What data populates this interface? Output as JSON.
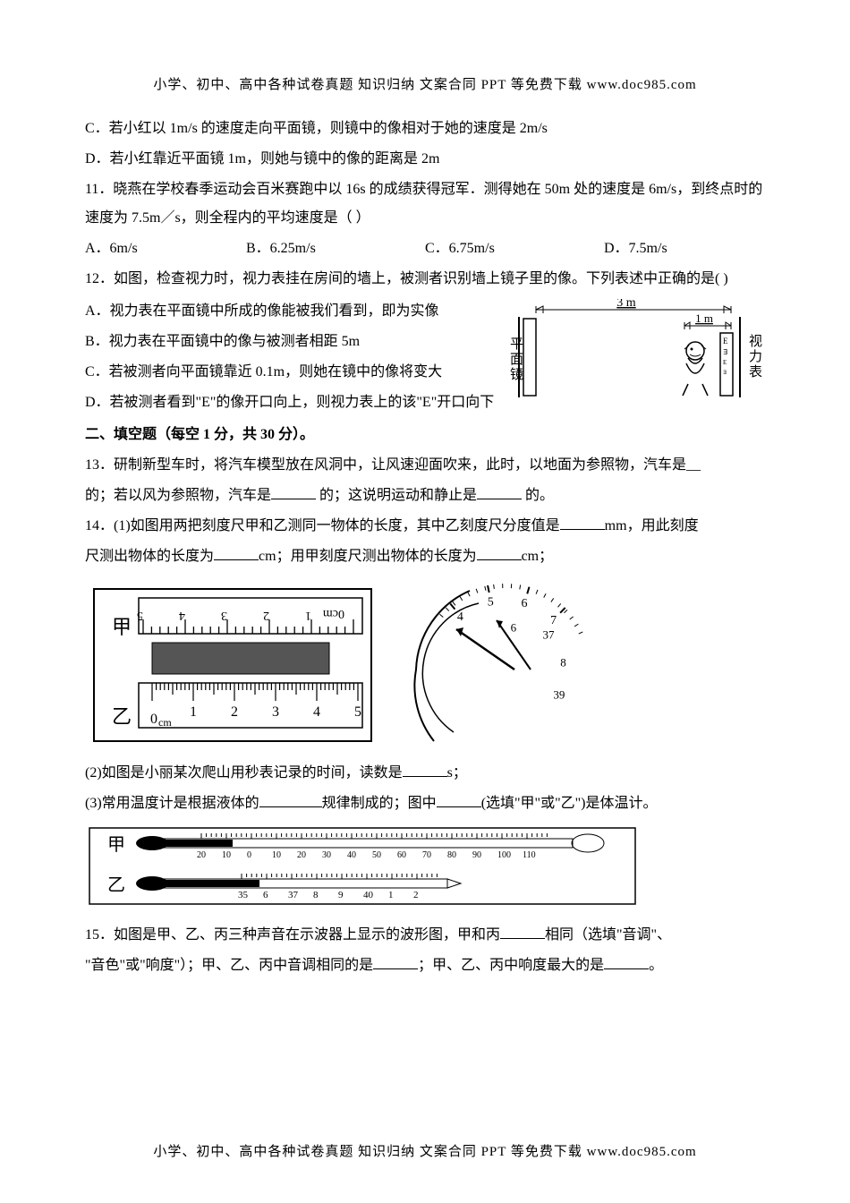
{
  "header": "小学、初中、高中各种试卷真题 知识归纳 文案合同 PPT 等免费下载  www.doc985.com",
  "footer": "小学、初中、高中各种试卷真题 知识归纳 文案合同 PPT 等免费下载  www.doc985.com",
  "q10C": "C．若小红以 1m/s 的速度走向平面镜，则镜中的像相对于她的速度是 2m/s",
  "q10D": "D．若小红靠近平面镜 1m，则她与镜中的像的距离是 2m",
  "q11stem": "11．晓燕在学校春季运动会百米赛跑中以 16s 的成绩获得冠军．测得她在 50m 处的速度是 6m/s，到终点时的速度为 7.5m／s，则全程内的平均速度是（        ）",
  "q11": {
    "A": "A．6m/s",
    "B": "B．6.25m/s",
    "C": "C．6.75m/s",
    "D": "D．7.5m/s"
  },
  "q12stem": "12．如图，检查视力时，视力表挂在房间的墙上，被测者识别墙上镜子里的像。下列表述中正确的是(      )",
  "q12": {
    "A": "A．视力表在平面镜中所成的像能被我们看到，即为实像",
    "B": "B．视力表在平面镜中的像与被测者相距 5m",
    "C": "C．若被测者向平面镜靠近 0.1m，则她在镜中的像将变大",
    "D": "D．若被测者看到\"E\"的像开口向上，则视力表上的该\"E\"开口向下"
  },
  "q12fig": {
    "d3": "3 m",
    "d1": "1 m",
    "mirror": "平面镜",
    "chart": "视力表"
  },
  "section2": "二、填空题（每空 1 分，共 30 分）。",
  "q13a": "13．研制新型车时，将汽车模型放在风洞中，让风速迎面吹来，此时，以地面为参照物，汽车是__",
  "q13b1": "的；若以风为参照物，汽车是",
  "q13b2": "的；这说明运动和静止是",
  "q13b3": "的。",
  "q14_1a": "14．(1)如图用两把刻度尺甲和乙测同一物体的长度，其中乙刻度尺分度值是",
  "q14_1b": "mm，用此刻度",
  "q14_1c": "尺测出物体的长度为",
  "q14_1d": "cm；用甲刻度尺测出物体的长度为",
  "q14_1e": "cm；",
  "ruler": {
    "jia": "甲",
    "yi": "乙",
    "top_label": "0cm",
    "top_ticks": [
      "1",
      "2",
      "3",
      "4",
      "5"
    ],
    "bot_label": "0cm",
    "bot_ticks": [
      "1",
      "2",
      "3",
      "4",
      "5"
    ]
  },
  "stopwatch": {
    "outer": [
      "4",
      "5",
      "6",
      "7"
    ],
    "inner": [
      "6",
      "37",
      "8",
      "39"
    ]
  },
  "q14_2a": "(2)如图是小丽某次爬山用秒表记录的时间，读数是",
  "q14_2b": "s；",
  "q14_3a": "(3)常用温度计是根据液体的",
  "q14_3b": "规律制成的；图中",
  "q14_3c": "(选填\"甲\"或\"乙\")是体温计。",
  "thermo": {
    "jia": "甲",
    "yi": "乙",
    "jia_ticks": [
      "20",
      "10",
      "0",
      "10",
      "20",
      "30",
      "40",
      "50",
      "60",
      "70",
      "80",
      "90",
      "100",
      "110"
    ],
    "yi_ticks": [
      "35",
      "6",
      "37",
      "8",
      "9",
      "40",
      "1",
      "2"
    ]
  },
  "q15a": "15．如图是甲、乙、丙三种声音在示波器上显示的波形图，甲和丙",
  "q15b": "相同（选填\"音调\"、",
  "q15c": "\"音色\"或\"响度\"）；甲、乙、丙中音调相同的是",
  "q15d": "；甲、乙、丙中响度最大的是",
  "q15e": "。"
}
